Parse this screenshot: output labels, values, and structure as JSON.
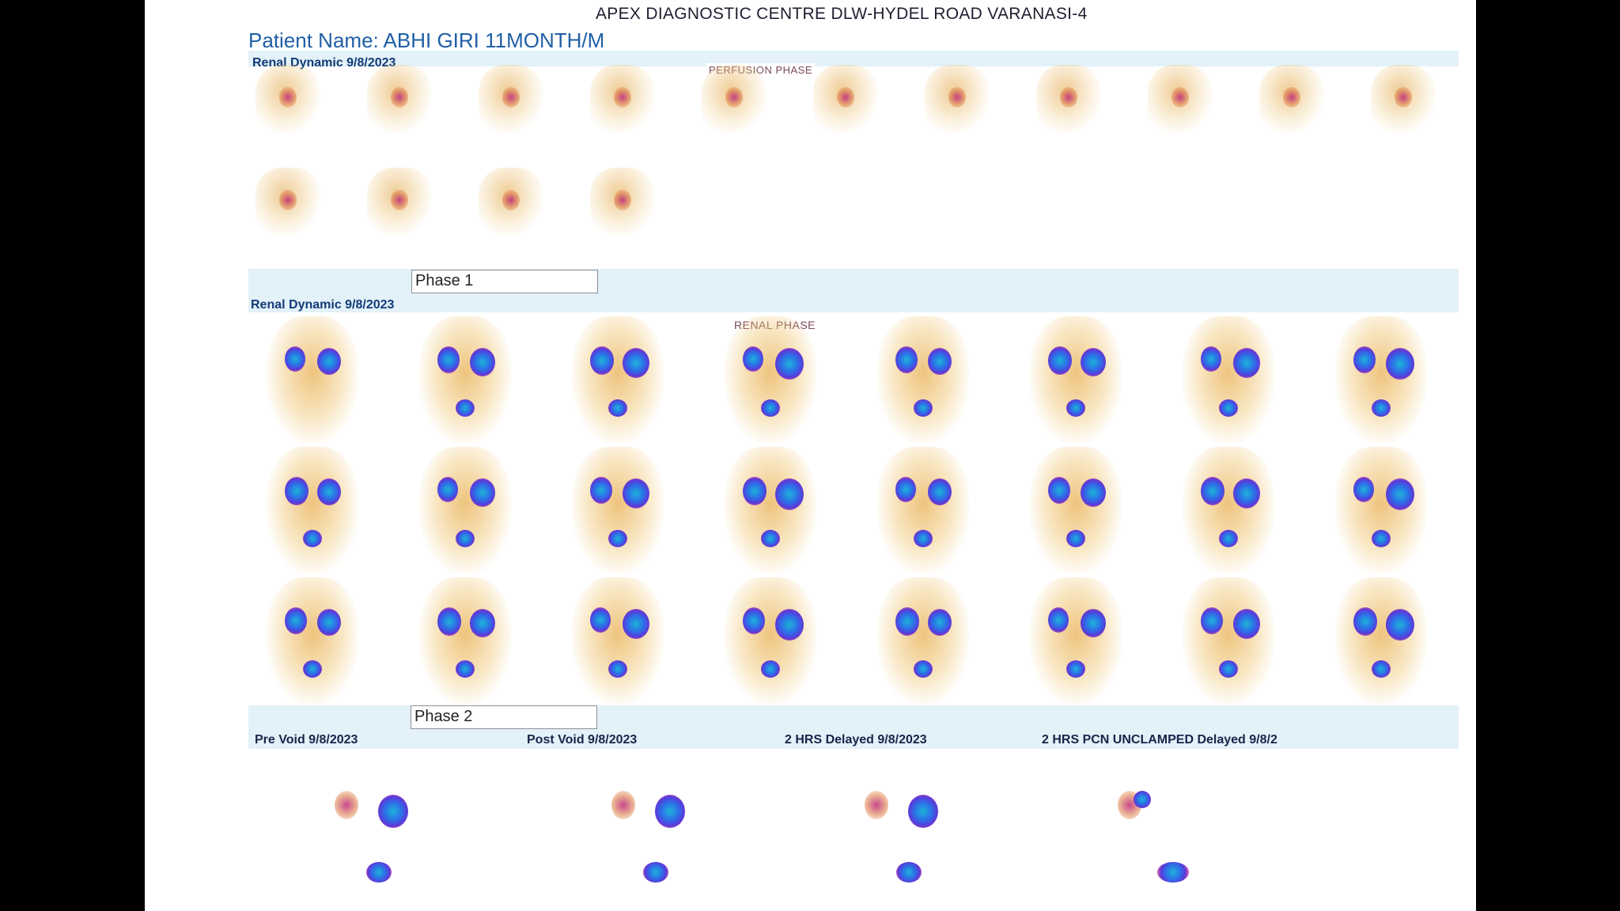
{
  "header": {
    "centre": "APEX DIAGNOSTIC CENTRE DLW-HYDEL ROAD VARANASI-4",
    "patient": "Patient Name: ABHI GIRI 11MONTH/M"
  },
  "perfusion": {
    "label": "Renal Dynamic 9/8/2023",
    "tag": "PERFUSION PHASE",
    "frame_count": 15
  },
  "renal": {
    "phase_box": "Phase 1",
    "label": "Renal Dynamic 9/8/2023",
    "tag": "RENAL PHASE",
    "frame_count": 24
  },
  "delayed": {
    "phase_box": "Phase 2",
    "labels": [
      "Pre Void 9/8/2023",
      "Post Void 9/8/2023",
      "2 HRS Delayed 9/8/2023",
      "2 HRS PCN UNCLAMPED Delayed 9/8/2"
    ]
  },
  "colors": {
    "tracer_hot": "#2d6ee8",
    "tracer_core": "#1db3d8",
    "tracer_edge": "#c832a0",
    "background_activity": "#e8aa46",
    "band": "#e3f1f8",
    "title_blue": "#1f5fa6"
  }
}
